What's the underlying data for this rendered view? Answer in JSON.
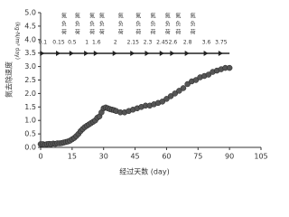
{
  "chart_data": {
    "type": "scatter",
    "y_label": "氮去除速度",
    "y_unit": "(kg-N/m³ day)",
    "x_label": "经过天数 (day)",
    "loading_label": "氮负荷",
    "loading_days": [
      1,
      8.6,
      15,
      22,
      26.6,
      35.6,
      44,
      51,
      58,
      63,
      70,
      79,
      86
    ],
    "loading_values": [
      0.1,
      0.15,
      0.5,
      1.0,
      1.6,
      2.0,
      2.15,
      2.3,
      2.45,
      2.6,
      2.8,
      3.6,
      3.75
    ],
    "x": [
      0,
      1,
      2,
      3,
      4,
      5,
      6,
      7,
      8,
      9,
      10,
      11,
      12,
      13,
      14,
      15,
      16,
      17,
      18,
      19,
      20,
      21,
      22,
      23,
      24,
      25,
      26,
      27,
      28,
      29,
      30,
      31,
      32,
      33,
      34,
      35,
      36,
      38,
      40,
      42,
      44,
      46,
      48,
      50,
      52,
      54,
      56,
      58,
      60,
      62,
      64,
      66,
      68,
      70,
      72,
      74,
      76,
      78,
      80,
      82,
      84,
      86,
      88,
      90
    ],
    "series": [
      {
        "color": "#555555",
        "values": [
          0.12,
          0.12,
          0.1,
          0.12,
          0.13,
          0.12,
          0.14,
          0.13,
          0.15,
          0.15,
          0.16,
          0.18,
          0.2,
          0.22,
          0.25,
          0.3,
          0.35,
          0.42,
          0.5,
          0.6,
          0.68,
          0.75,
          0.8,
          0.85,
          0.9,
          0.95,
          1.0,
          1.1,
          1.15,
          1.3,
          1.45,
          1.48,
          1.45,
          1.42,
          1.4,
          1.38,
          1.35,
          1.3,
          1.3,
          1.35,
          1.4,
          1.45,
          1.5,
          1.55,
          1.55,
          1.6,
          1.65,
          1.7,
          1.8,
          1.9,
          2.0,
          2.1,
          2.2,
          2.35,
          2.45,
          2.5,
          2.6,
          2.65,
          2.7,
          2.8,
          2.85,
          2.9,
          2.95,
          2.95
        ]
      }
    ],
    "xlim": [
      0,
      105
    ],
    "xticks": [
      0,
      15,
      30,
      45,
      60,
      75,
      90,
      105
    ],
    "ylim": [
      0,
      5
    ],
    "yticks": [
      {
        "value": 0,
        "label": "0.0"
      },
      {
        "value": 0.5,
        "label": "0.5"
      },
      {
        "value": 1,
        "label": "1.0"
      },
      {
        "value": 1.5,
        "label": "1.5"
      },
      {
        "value": 2,
        "label": "2.0"
      },
      {
        "value": 2.5,
        "label": "2.5"
      },
      {
        "value": 3,
        "label": "3.0"
      },
      {
        "value": 3.5,
        "label": "3.5"
      },
      {
        "value": 4,
        "label": "4.0"
      },
      {
        "value": 4.5,
        "label": "4.5"
      },
      {
        "value": 5,
        "label": "5.0"
      }
    ]
  }
}
